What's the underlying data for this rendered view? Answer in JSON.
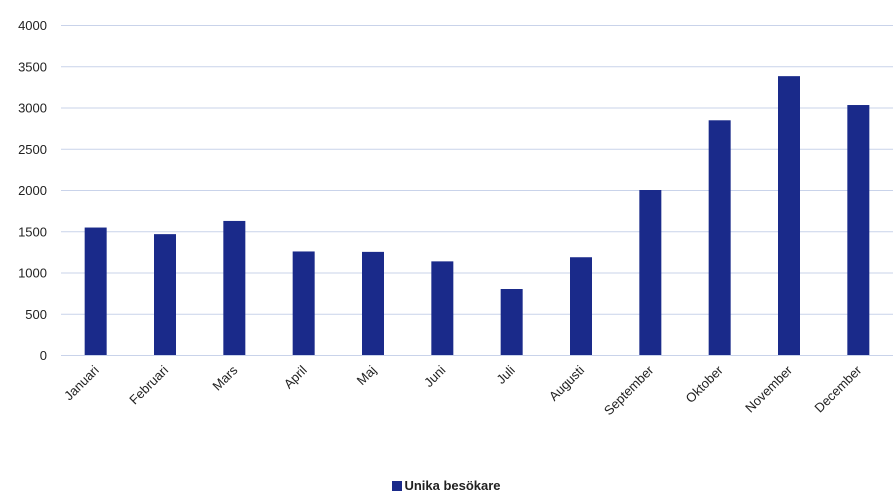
{
  "colors": {
    "bar": "#1a2a8a",
    "grid": "#c9d3ea",
    "axis": "#c9d3ea",
    "text": "#222222"
  },
  "chart_data": {
    "type": "bar",
    "title": "",
    "xlabel": "",
    "ylabel": "",
    "ylim": [
      0,
      4000
    ],
    "yticks": [
      0,
      500,
      1000,
      1500,
      2000,
      2500,
      3000,
      3500,
      4000
    ],
    "grid": true,
    "legend_position": "bottom",
    "categories": [
      "Januari",
      "Februari",
      "Mars",
      "April",
      "Maj",
      "Juni",
      "Juli",
      "Augusti",
      "September",
      "Oktober",
      "November",
      "December"
    ],
    "series": [
      {
        "name": "Unika besökare",
        "values": [
          1545,
          1465,
          1625,
          1255,
          1250,
          1135,
          800,
          1185,
          2000,
          2845,
          3380,
          3030
        ]
      }
    ]
  }
}
